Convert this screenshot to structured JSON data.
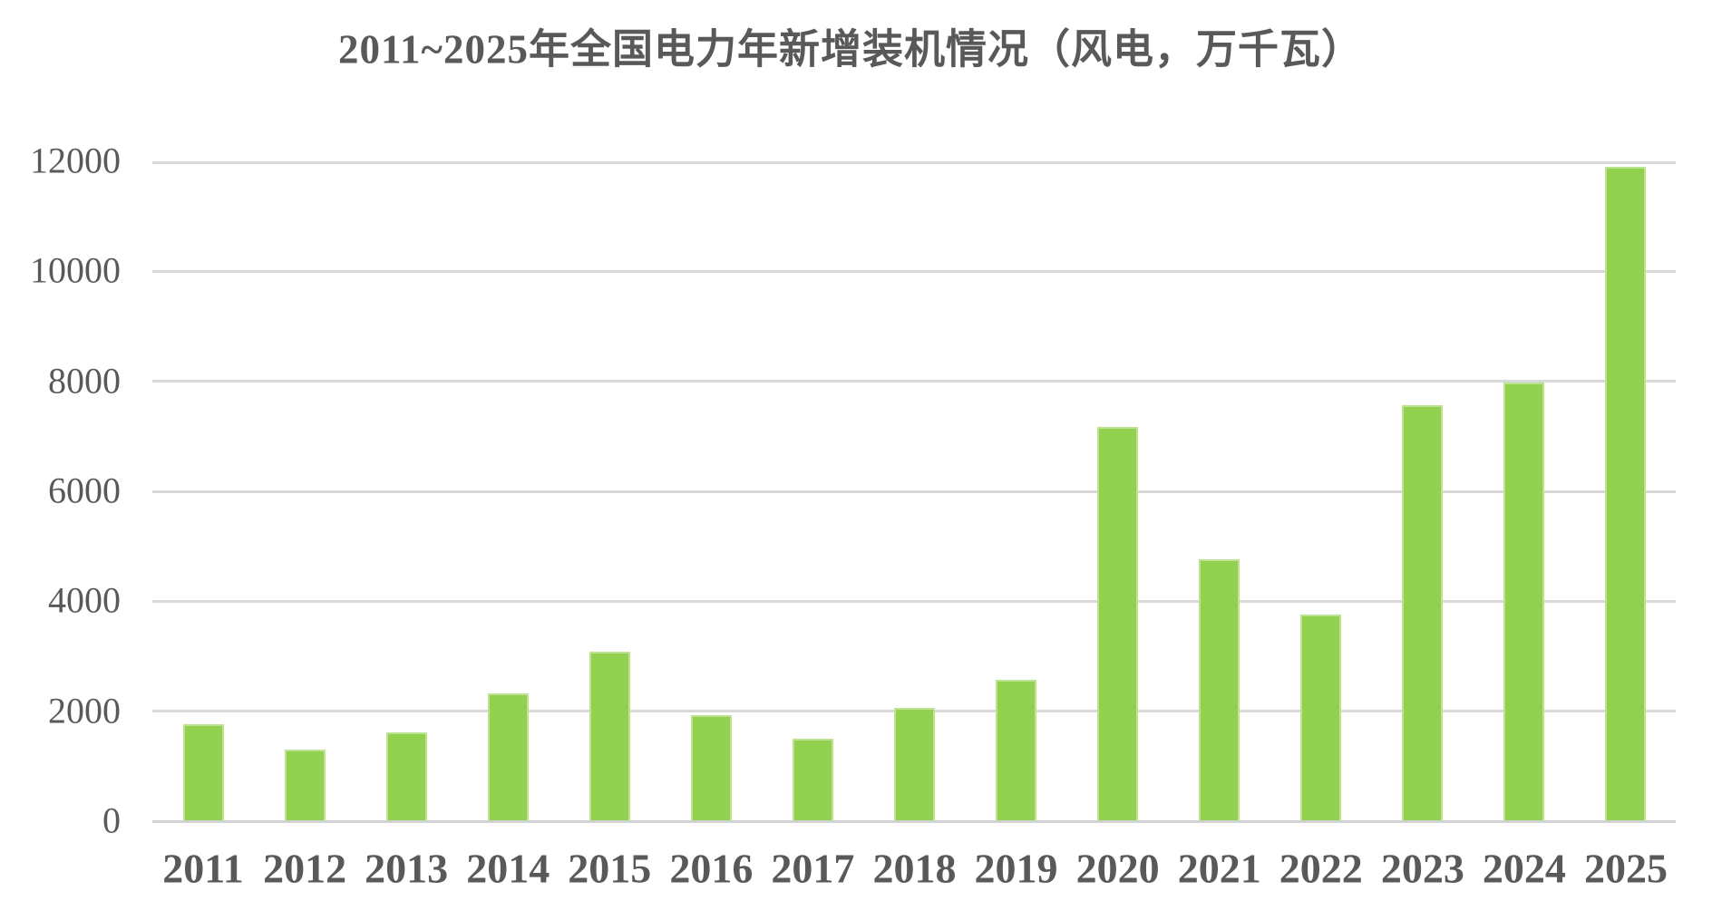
{
  "title": "2011~2025年全国电力年新增装机情况（风电，万千瓦）",
  "colors": {
    "background": "#FFFFFF",
    "bar_fill": "#92D050",
    "bar_edge": "#BCE392",
    "gridline": "#D9D9D9",
    "baseline": "#D3D3D3",
    "title_text": "#595959",
    "axis_text": "#595959"
  },
  "chart_data": {
    "type": "bar",
    "title": "2011~2025年全国电力年新增装机情况（风电，万千瓦）",
    "xlabel": "",
    "ylabel": "",
    "unit": "万千瓦",
    "series_name": "风电",
    "categories": [
      "2011",
      "2012",
      "2013",
      "2014",
      "2015",
      "2016",
      "2017",
      "2018",
      "2019",
      "2020",
      "2021",
      "2022",
      "2023",
      "2024",
      "2025"
    ],
    "values": [
      1763,
      1296,
      1609,
      2319,
      3075,
      1930,
      1503,
      2059,
      2572,
      7167,
      4757,
      3763,
      7566,
      7982,
      11900
    ],
    "ylim": [
      0,
      12000
    ],
    "yticks": [
      0,
      2000,
      4000,
      6000,
      8000,
      10000,
      12000
    ],
    "ytick_labels": [
      "0",
      "2000",
      "4000",
      "6000",
      "8000",
      "10000",
      "12000"
    ],
    "grid": "horizontal",
    "legend": "none"
  }
}
